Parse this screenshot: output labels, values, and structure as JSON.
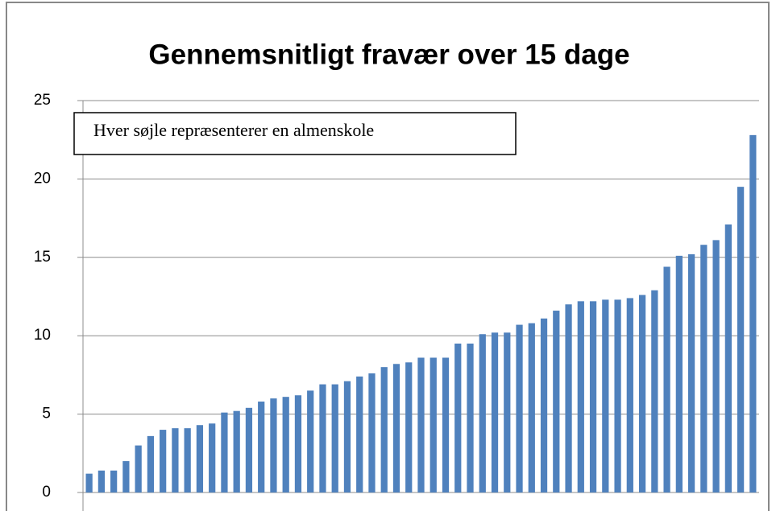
{
  "chart_data": {
    "type": "bar",
    "title": "Gennemsnitligt fravær over 15 dage",
    "annotation": "Hver søjle repræsenterer en almenskole",
    "categories": [
      null,
      null,
      null,
      null,
      null,
      null,
      null,
      null,
      null,
      null,
      null,
      null,
      null,
      null,
      null,
      null,
      null,
      null,
      null,
      null,
      null,
      null,
      null,
      null,
      null,
      null,
      null,
      null,
      null,
      null,
      null,
      null,
      null,
      null,
      null,
      null,
      null,
      null,
      null,
      null,
      null,
      null,
      null,
      null,
      null,
      null,
      null,
      null,
      null,
      null,
      null,
      null,
      null,
      null,
      null
    ],
    "values": [
      1.2,
      1.4,
      1.4,
      2.0,
      3.0,
      3.6,
      4.0,
      4.1,
      4.1,
      4.3,
      4.4,
      5.1,
      5.2,
      5.4,
      5.8,
      6.0,
      6.1,
      6.2,
      6.5,
      6.9,
      6.9,
      7.1,
      7.4,
      7.6,
      8.0,
      8.2,
      8.3,
      8.6,
      8.6,
      8.6,
      9.5,
      9.5,
      10.1,
      10.2,
      10.2,
      10.7,
      10.8,
      11.1,
      11.6,
      12.0,
      12.2,
      12.2,
      12.3,
      12.3,
      12.4,
      12.6,
      12.9,
      14.4,
      15.1,
      15.2,
      15.8,
      16.1,
      17.1,
      19.5,
      22.8
    ],
    "color": "#4f81bd",
    "ylim": [
      0,
      25
    ],
    "yticks": [
      0,
      5,
      10,
      15,
      20,
      25
    ],
    "grid": true
  }
}
